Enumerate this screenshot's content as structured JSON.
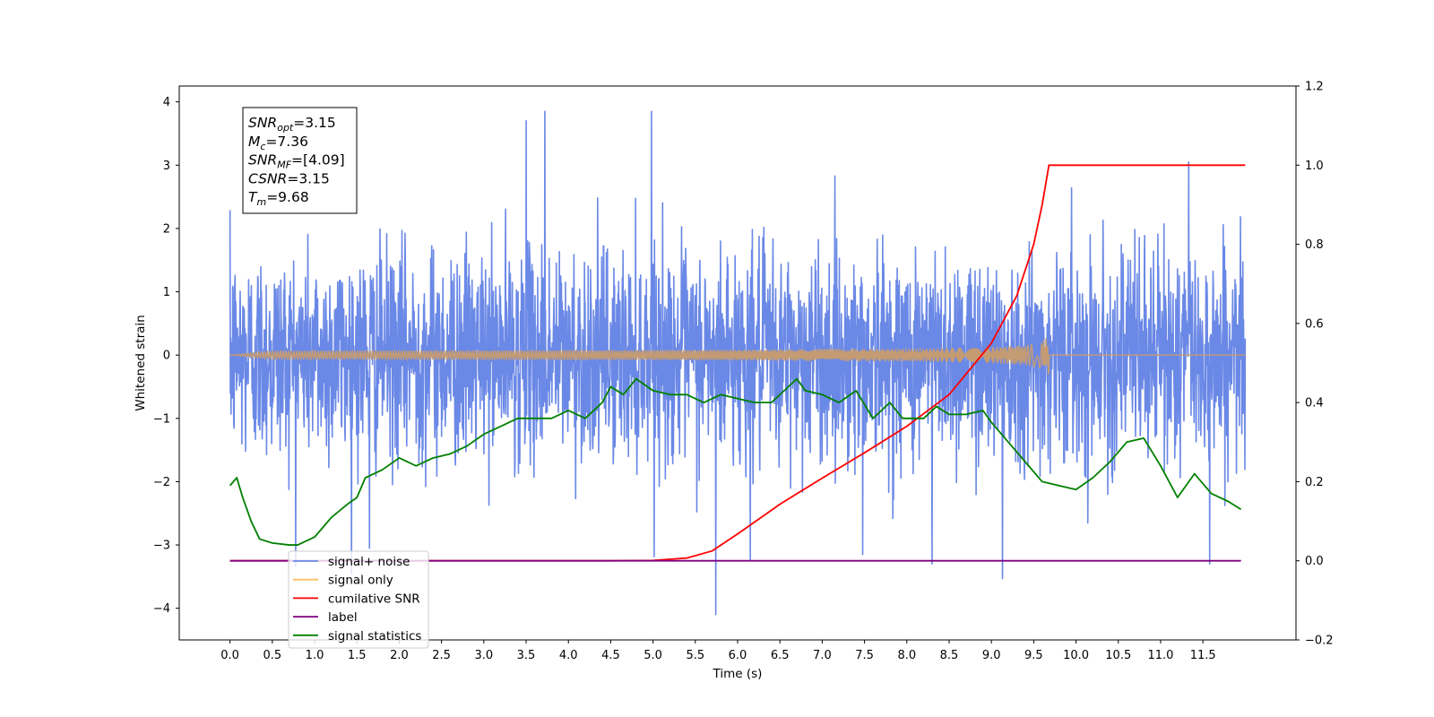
{
  "chart_data": {
    "type": "line",
    "xlabel": "Time (s)",
    "ylabel_left": "Whitened strain",
    "ylabel_right": "",
    "xlim": [
      -0.6,
      12.6
    ],
    "ylim_left": [
      -4.5,
      4.25
    ],
    "ylim_right": [
      -0.2,
      1.2
    ],
    "x_ticks": [
      0.0,
      0.5,
      1.0,
      1.5,
      2.0,
      2.5,
      3.0,
      3.5,
      4.0,
      4.5,
      5.0,
      5.5,
      6.0,
      6.5,
      7.0,
      7.5,
      8.0,
      8.5,
      9.0,
      9.5,
      10.0,
      10.5,
      11.0,
      11.5
    ],
    "x_tick_labels": [
      "0.0",
      "0.5",
      "1.0",
      "1.5",
      "2.0",
      "2.5",
      "3.0",
      "3.5",
      "4.0",
      "4.5",
      "5.0",
      "5.5",
      "6.0",
      "6.5",
      "7.0",
      "7.5",
      "8.0",
      "8.5",
      "9.0",
      "9.5",
      "10.0",
      "10.5",
      "11.0",
      "11.5"
    ],
    "y_left_ticks": [
      -4,
      -3,
      -2,
      -1,
      0,
      1,
      2,
      3,
      4
    ],
    "y_left_tick_labels": [
      "−4",
      "−3",
      "−2",
      "−1",
      "0",
      "1",
      "2",
      "3",
      "4"
    ],
    "y_right_ticks": [
      -0.2,
      0.0,
      0.2,
      0.4,
      0.6,
      0.8,
      1.0,
      1.2
    ],
    "y_right_tick_labels": [
      "−0.2",
      "0.0",
      "0.2",
      "0.4",
      "0.6",
      "0.8",
      "1.0",
      "1.2"
    ],
    "grid": false,
    "legend_position": "lower-left",
    "info_box": {
      "lines": [
        {
          "main": "SNR",
          "sub": "opt",
          "rest": "=3.15"
        },
        {
          "main": "M",
          "sub": "c",
          "rest": "=7.36"
        },
        {
          "main": "SNR",
          "sub": "MF",
          "rest": "=[4.09]"
        },
        {
          "main": "CSNR",
          "sub": "",
          "rest": "=3.15"
        },
        {
          "main": "T",
          "sub": "m",
          "rest": "=9.68"
        }
      ]
    },
    "series": [
      {
        "name": "signal+ noise",
        "axis": "left",
        "color": "#6a88e6",
        "kind": "noise",
        "x_range": [
          0.0,
          12.0
        ],
        "typical_range": [
          -1.5,
          1.5
        ],
        "peaks": [
          {
            "x": 3.72,
            "y": 3.85
          },
          {
            "x": 4.98,
            "y": 3.85
          },
          {
            "x": 3.5,
            "y": 3.7
          },
          {
            "x": 11.33,
            "y": 3.05
          },
          {
            "x": 5.74,
            "y": -4.1
          },
          {
            "x": 9.13,
            "y": -3.53
          },
          {
            "x": 7.48,
            "y": -3.15
          },
          {
            "x": 8.3,
            "y": -3.3
          },
          {
            "x": 6.15,
            "y": -3.25
          },
          {
            "x": 11.58,
            "y": -3.3
          },
          {
            "x": 1.65,
            "y": -3.05
          }
        ]
      },
      {
        "name": "signal only",
        "axis": "left",
        "color": "#c49b73",
        "kind": "chirp",
        "x_start": 0.0,
        "x_end": 12.0,
        "merger_time": 9.68,
        "peak_amplitude": 0.45
      },
      {
        "name": "cumilative SNR",
        "axis": "right",
        "color": "#ff0000",
        "x": [
          0.0,
          4.5,
          5.0,
          5.4,
          5.7,
          6.0,
          6.5,
          7.0,
          7.5,
          8.0,
          8.5,
          9.0,
          9.3,
          9.5,
          9.6,
          9.68,
          12.0
        ],
        "y": [
          0.0,
          0.0,
          0.001,
          0.007,
          0.025,
          0.068,
          0.143,
          0.209,
          0.273,
          0.34,
          0.42,
          0.55,
          0.67,
          0.8,
          0.9,
          1.0,
          1.0
        ]
      },
      {
        "name": "label",
        "axis": "right",
        "color": "#800080",
        "x": [
          0.0,
          11.95
        ],
        "y": [
          0.0,
          0.0
        ]
      },
      {
        "name": "signal statistics",
        "axis": "right",
        "color": "#008000",
        "x": [
          0.0,
          0.08,
          0.15,
          0.25,
          0.35,
          0.5,
          0.7,
          0.8,
          1.0,
          1.2,
          1.4,
          1.5,
          1.6,
          1.8,
          2.0,
          2.2,
          2.4,
          2.6,
          2.8,
          3.0,
          3.2,
          3.4,
          3.6,
          3.8,
          4.0,
          4.2,
          4.4,
          4.5,
          4.65,
          4.8,
          5.0,
          5.2,
          5.4,
          5.6,
          5.8,
          6.0,
          6.2,
          6.4,
          6.6,
          6.7,
          6.8,
          7.0,
          7.2,
          7.4,
          7.6,
          7.8,
          7.95,
          8.2,
          8.35,
          8.5,
          8.7,
          8.9,
          9.0,
          9.2,
          9.4,
          9.6,
          9.8,
          10.0,
          10.2,
          10.4,
          10.6,
          10.8,
          11.0,
          11.2,
          11.4,
          11.6,
          11.8,
          11.95
        ],
        "y": [
          0.19,
          0.21,
          0.16,
          0.1,
          0.055,
          0.045,
          0.04,
          0.04,
          0.06,
          0.11,
          0.145,
          0.16,
          0.21,
          0.23,
          0.26,
          0.24,
          0.26,
          0.27,
          0.29,
          0.32,
          0.34,
          0.36,
          0.36,
          0.36,
          0.38,
          0.36,
          0.4,
          0.44,
          0.42,
          0.46,
          0.43,
          0.42,
          0.42,
          0.4,
          0.42,
          0.41,
          0.4,
          0.4,
          0.44,
          0.46,
          0.43,
          0.42,
          0.4,
          0.43,
          0.36,
          0.4,
          0.36,
          0.36,
          0.39,
          0.37,
          0.37,
          0.38,
          0.35,
          0.3,
          0.25,
          0.2,
          0.19,
          0.18,
          0.21,
          0.25,
          0.3,
          0.31,
          0.24,
          0.16,
          0.22,
          0.17,
          0.15,
          0.13
        ]
      }
    ]
  }
}
